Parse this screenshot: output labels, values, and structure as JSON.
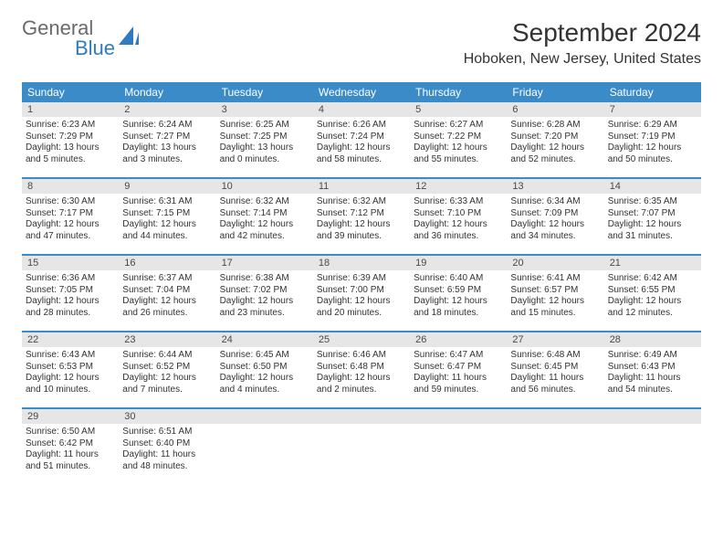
{
  "logo": {
    "text_gray": "General",
    "text_blue": "Blue"
  },
  "title": "September 2024",
  "location": "Hoboken, New Jersey, United States",
  "colors": {
    "header_blue": "#3b8bc9",
    "daynum_bg": "#e6e6e6",
    "text": "#333333",
    "logo_gray": "#6a6a6a",
    "logo_blue": "#2f7bbf"
  },
  "dow": [
    "Sunday",
    "Monday",
    "Tuesday",
    "Wednesday",
    "Thursday",
    "Friday",
    "Saturday"
  ],
  "weeks": [
    [
      {
        "n": "1",
        "sr": "Sunrise: 6:23 AM",
        "ss": "Sunset: 7:29 PM",
        "dl": "Daylight: 13 hours and 5 minutes."
      },
      {
        "n": "2",
        "sr": "Sunrise: 6:24 AM",
        "ss": "Sunset: 7:27 PM",
        "dl": "Daylight: 13 hours and 3 minutes."
      },
      {
        "n": "3",
        "sr": "Sunrise: 6:25 AM",
        "ss": "Sunset: 7:25 PM",
        "dl": "Daylight: 13 hours and 0 minutes."
      },
      {
        "n": "4",
        "sr": "Sunrise: 6:26 AM",
        "ss": "Sunset: 7:24 PM",
        "dl": "Daylight: 12 hours and 58 minutes."
      },
      {
        "n": "5",
        "sr": "Sunrise: 6:27 AM",
        "ss": "Sunset: 7:22 PM",
        "dl": "Daylight: 12 hours and 55 minutes."
      },
      {
        "n": "6",
        "sr": "Sunrise: 6:28 AM",
        "ss": "Sunset: 7:20 PM",
        "dl": "Daylight: 12 hours and 52 minutes."
      },
      {
        "n": "7",
        "sr": "Sunrise: 6:29 AM",
        "ss": "Sunset: 7:19 PM",
        "dl": "Daylight: 12 hours and 50 minutes."
      }
    ],
    [
      {
        "n": "8",
        "sr": "Sunrise: 6:30 AM",
        "ss": "Sunset: 7:17 PM",
        "dl": "Daylight: 12 hours and 47 minutes."
      },
      {
        "n": "9",
        "sr": "Sunrise: 6:31 AM",
        "ss": "Sunset: 7:15 PM",
        "dl": "Daylight: 12 hours and 44 minutes."
      },
      {
        "n": "10",
        "sr": "Sunrise: 6:32 AM",
        "ss": "Sunset: 7:14 PM",
        "dl": "Daylight: 12 hours and 42 minutes."
      },
      {
        "n": "11",
        "sr": "Sunrise: 6:32 AM",
        "ss": "Sunset: 7:12 PM",
        "dl": "Daylight: 12 hours and 39 minutes."
      },
      {
        "n": "12",
        "sr": "Sunrise: 6:33 AM",
        "ss": "Sunset: 7:10 PM",
        "dl": "Daylight: 12 hours and 36 minutes."
      },
      {
        "n": "13",
        "sr": "Sunrise: 6:34 AM",
        "ss": "Sunset: 7:09 PM",
        "dl": "Daylight: 12 hours and 34 minutes."
      },
      {
        "n": "14",
        "sr": "Sunrise: 6:35 AM",
        "ss": "Sunset: 7:07 PM",
        "dl": "Daylight: 12 hours and 31 minutes."
      }
    ],
    [
      {
        "n": "15",
        "sr": "Sunrise: 6:36 AM",
        "ss": "Sunset: 7:05 PM",
        "dl": "Daylight: 12 hours and 28 minutes."
      },
      {
        "n": "16",
        "sr": "Sunrise: 6:37 AM",
        "ss": "Sunset: 7:04 PM",
        "dl": "Daylight: 12 hours and 26 minutes."
      },
      {
        "n": "17",
        "sr": "Sunrise: 6:38 AM",
        "ss": "Sunset: 7:02 PM",
        "dl": "Daylight: 12 hours and 23 minutes."
      },
      {
        "n": "18",
        "sr": "Sunrise: 6:39 AM",
        "ss": "Sunset: 7:00 PM",
        "dl": "Daylight: 12 hours and 20 minutes."
      },
      {
        "n": "19",
        "sr": "Sunrise: 6:40 AM",
        "ss": "Sunset: 6:59 PM",
        "dl": "Daylight: 12 hours and 18 minutes."
      },
      {
        "n": "20",
        "sr": "Sunrise: 6:41 AM",
        "ss": "Sunset: 6:57 PM",
        "dl": "Daylight: 12 hours and 15 minutes."
      },
      {
        "n": "21",
        "sr": "Sunrise: 6:42 AM",
        "ss": "Sunset: 6:55 PM",
        "dl": "Daylight: 12 hours and 12 minutes."
      }
    ],
    [
      {
        "n": "22",
        "sr": "Sunrise: 6:43 AM",
        "ss": "Sunset: 6:53 PM",
        "dl": "Daylight: 12 hours and 10 minutes."
      },
      {
        "n": "23",
        "sr": "Sunrise: 6:44 AM",
        "ss": "Sunset: 6:52 PM",
        "dl": "Daylight: 12 hours and 7 minutes."
      },
      {
        "n": "24",
        "sr": "Sunrise: 6:45 AM",
        "ss": "Sunset: 6:50 PM",
        "dl": "Daylight: 12 hours and 4 minutes."
      },
      {
        "n": "25",
        "sr": "Sunrise: 6:46 AM",
        "ss": "Sunset: 6:48 PM",
        "dl": "Daylight: 12 hours and 2 minutes."
      },
      {
        "n": "26",
        "sr": "Sunrise: 6:47 AM",
        "ss": "Sunset: 6:47 PM",
        "dl": "Daylight: 11 hours and 59 minutes."
      },
      {
        "n": "27",
        "sr": "Sunrise: 6:48 AM",
        "ss": "Sunset: 6:45 PM",
        "dl": "Daylight: 11 hours and 56 minutes."
      },
      {
        "n": "28",
        "sr": "Sunrise: 6:49 AM",
        "ss": "Sunset: 6:43 PM",
        "dl": "Daylight: 11 hours and 54 minutes."
      }
    ],
    [
      {
        "n": "29",
        "sr": "Sunrise: 6:50 AM",
        "ss": "Sunset: 6:42 PM",
        "dl": "Daylight: 11 hours and 51 minutes."
      },
      {
        "n": "30",
        "sr": "Sunrise: 6:51 AM",
        "ss": "Sunset: 6:40 PM",
        "dl": "Daylight: 11 hours and 48 minutes."
      },
      null,
      null,
      null,
      null,
      null
    ]
  ]
}
